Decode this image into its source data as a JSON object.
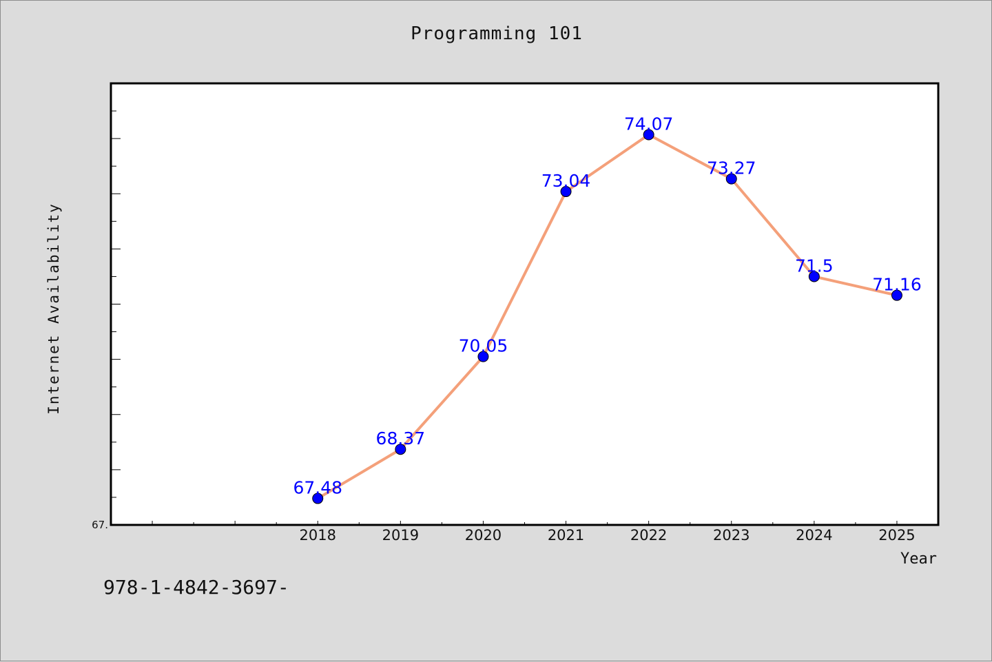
{
  "page": {
    "title": "Programming 101",
    "footer_text": "978-1-4842-3697-"
  },
  "chart_data": {
    "type": "line",
    "title": "Programming 101",
    "xlabel": "Year",
    "ylabel": "Internet Availability",
    "categories": [
      "2018",
      "2019",
      "2020",
      "2021",
      "2022",
      "2023",
      "2024",
      "2025"
    ],
    "series": [
      {
        "values": [
          67.48,
          68.37,
          70.05,
          73.04,
          74.07,
          73.27,
          71.5,
          71.16
        ],
        "data_labels": [
          "67.48",
          "68.37",
          "70.05",
          "73.04",
          "74.07",
          "73.27",
          "71.5",
          "71.16"
        ]
      }
    ],
    "ylim": [
      67.0,
      75.0
    ],
    "xlim": [
      2015.5,
      2025.5
    ],
    "y_tick_labels": [
      "67."
    ],
    "grid": false,
    "colors": {
      "line": "#f4a07a",
      "marker": "#0000ff",
      "data_label": "#0000ff",
      "plot_background": "#ffffff",
      "page_background": "#dcdcdc"
    }
  }
}
